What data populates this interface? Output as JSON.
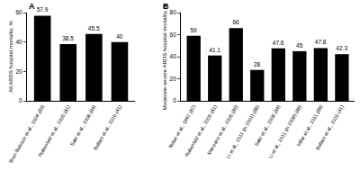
{
  "chart_data": [
    {
      "type": "bar",
      "title": "A",
      "y_label": "All ARDS hospital mortality, %",
      "categories": [
        "Brun-Buisson et al., 2004 (83)",
        "Rubenfeld et al., 2005 (81)",
        "Sakr et al., 2008 (84)",
        "Bellani et al., 2016 (41)"
      ],
      "values": [
        57.9,
        38.5,
        45.5,
        40
      ],
      "color": "#000000",
      "ylim": [
        0,
        60
      ],
      "yticks": [
        0,
        20,
        40,
        60
      ],
      "grid": false,
      "data_labels": true
    },
    {
      "type": "bar",
      "title": "B",
      "y_label": "Moderate-severe ARDS hospital mortality, %",
      "categories": [
        "Nolan et al., 1997 (87)",
        "Rubenfeld et al., 2005 (81)",
        "Manzano et al., 2005 (85)",
        "Li et al., 2011 (in 2001) (88)",
        "Sakr et al., 2008 (84)",
        "Li et al., 2011 (in 2008) (88)",
        "Villar et al., 2011 (89)",
        "Bellani et al., 2016 (41)"
      ],
      "values": [
        59,
        41.1,
        66,
        28,
        47.6,
        45,
        47.8,
        42.3
      ],
      "color": "#000000",
      "ylim": [
        0,
        80
      ],
      "yticks": [
        0,
        20,
        40,
        60,
        80
      ],
      "grid": false,
      "data_labels": true
    }
  ]
}
